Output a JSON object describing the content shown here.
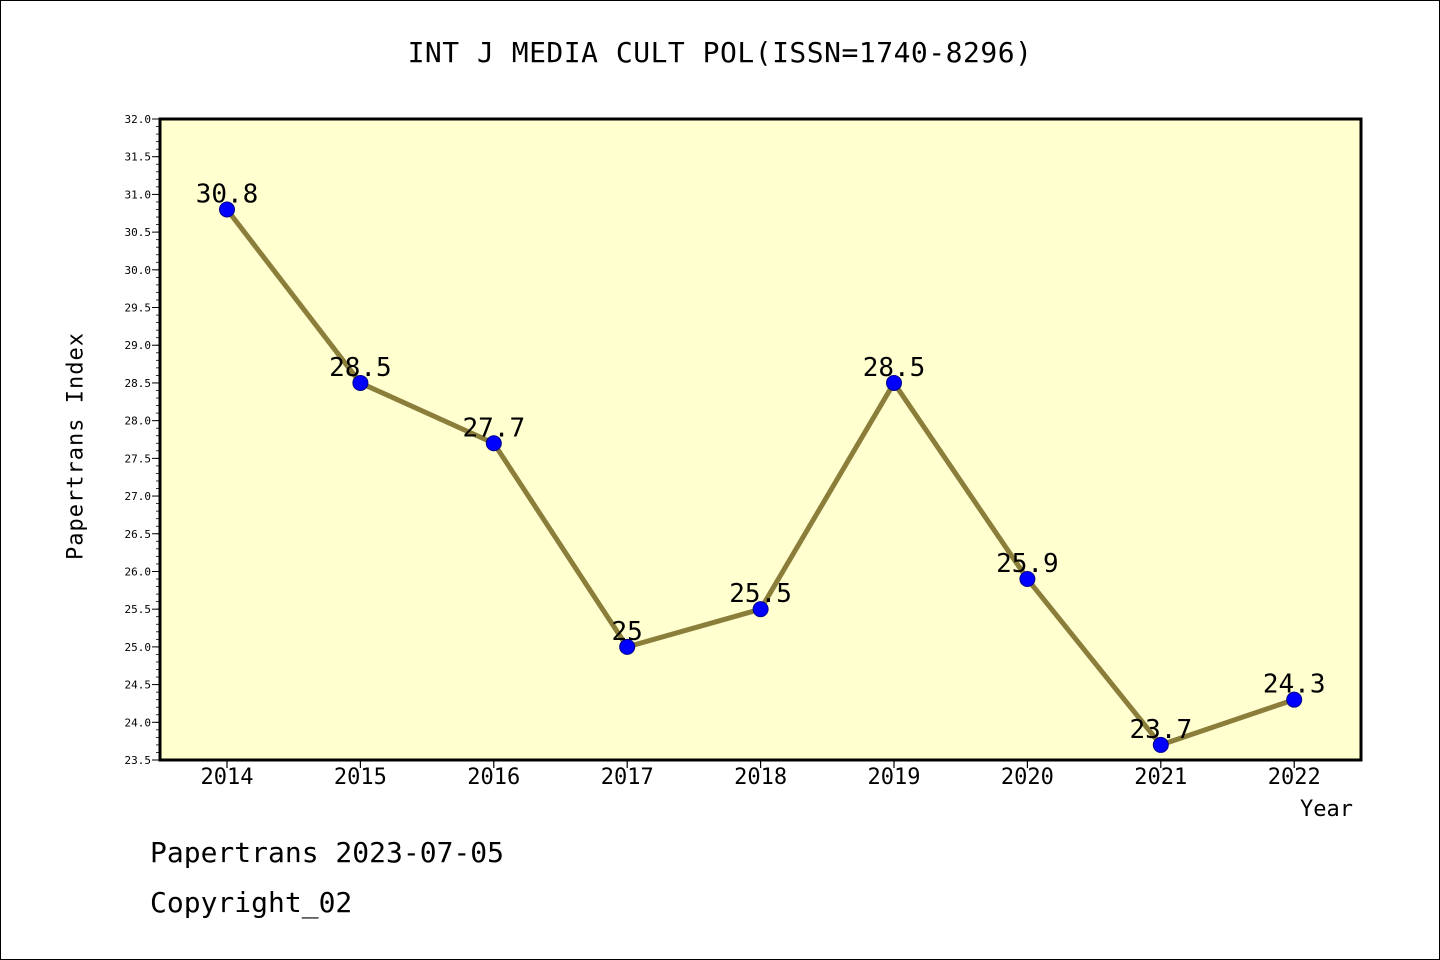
{
  "chart_data": {
    "type": "line",
    "title": "INT J MEDIA CULT POL(ISSN=1740-8296)",
    "xlabel": "Year",
    "ylabel": "Papertrans Index",
    "categories": [
      "2014",
      "2015",
      "2016",
      "2017",
      "2018",
      "2019",
      "2020",
      "2021",
      "2022"
    ],
    "series": [
      {
        "values": [
          30.8,
          28.5,
          27.7,
          25,
          25.5,
          28.5,
          25.9,
          23.7,
          24.3
        ],
        "labels": [
          "30.8",
          "28.5",
          "27.7",
          "25",
          "25.5",
          "28.5",
          "25.9",
          "23.7",
          "24.3"
        ]
      }
    ],
    "ylim": [
      23.5,
      32.0
    ],
    "yticks": [
      "23.5",
      "24.0",
      "24.5",
      "25.0",
      "25.5",
      "26.0",
      "26.5",
      "27.0",
      "27.5",
      "28.0",
      "28.5",
      "29.0",
      "29.5",
      "30.0",
      "30.5",
      "31.0",
      "31.5",
      "32.0"
    ],
    "grid": false,
    "colors": {
      "background": "#ffffd0",
      "line": "#8b7d3a",
      "marker": "#0000ff",
      "marker_edge": "#00008b"
    }
  },
  "footer": {
    "line1": "Papertrans 2023-07-05",
    "line2": "Copyright_02"
  }
}
